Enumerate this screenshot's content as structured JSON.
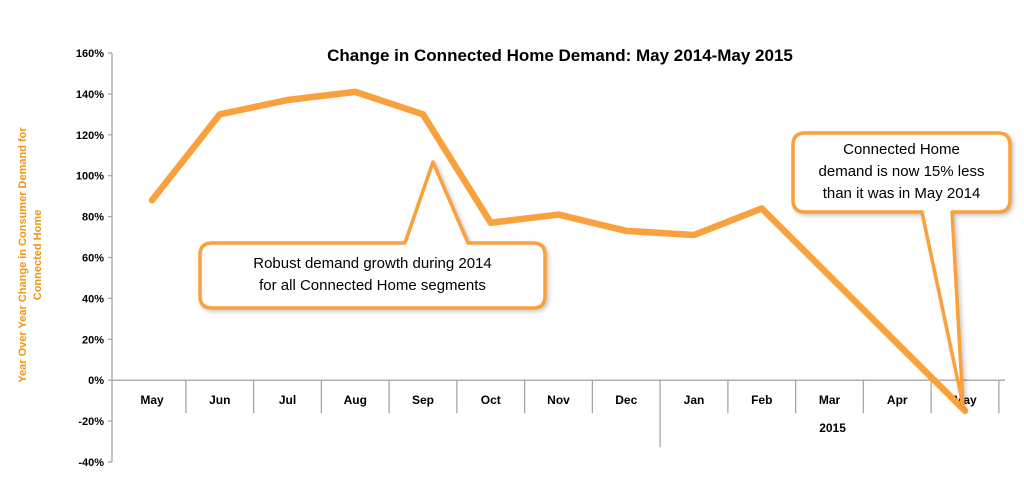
{
  "chart_data": {
    "type": "line",
    "title": "Change in Connected Home Demand: May 2014-May 2015",
    "ylabel": "Year Over Year Change in Consumer Demand for Connected Home",
    "categories": [
      "May",
      "Jun",
      "Jul",
      "Aug",
      "Sep",
      "Oct",
      "Nov",
      "Dec",
      "Jan",
      "Feb",
      "Mar",
      "Apr",
      "May"
    ],
    "values": [
      88,
      130,
      137,
      141,
      130,
      77,
      81,
      73,
      71,
      84,
      51,
      18,
      -15
    ],
    "ylim": [
      -40,
      160
    ],
    "y_tick_step": 20,
    "y_tick_labels": [
      "160%",
      "140%",
      "120%",
      "100%",
      "80%",
      "60%",
      "40%",
      "20%",
      "0%",
      "-20%",
      "-40%"
    ],
    "year_label": "2015",
    "year_starts_at": "Jan",
    "line_color": "#F9A13C",
    "grid": false,
    "legend": "none"
  },
  "y_axis_label": "Year Over Year Change in Consumer Demand for\nConnected Home",
  "annotations": {
    "callout1": {
      "text": "Robust demand growth during 2014\nfor all Connected Home segments"
    },
    "callout2": {
      "text": "Connected Home\ndemand is now 15% less\nthan it was in May 2014"
    }
  },
  "colors": {
    "accent": "#F9A13C",
    "axis": "#A6A6A6",
    "text": "#000000",
    "callout_border": "#F9A13C",
    "ylabel_text": "#ED9617"
  }
}
